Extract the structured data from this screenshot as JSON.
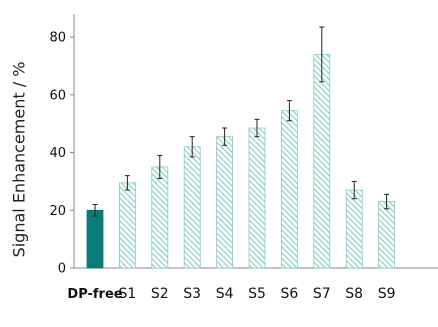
{
  "chart_data": {
    "type": "bar",
    "ylabel": "Signal Enhancement / %",
    "ylim": [
      0,
      88
    ],
    "yticks": [
      "0",
      "20",
      "40",
      "60",
      "80"
    ],
    "categories": [
      "DP-free",
      "S1",
      "S2",
      "S3",
      "S4",
      "S5",
      "S6",
      "S7",
      "S8",
      "S9"
    ],
    "values": [
      20,
      29.5,
      35,
      42,
      45.5,
      48.5,
      54.5,
      74,
      27,
      23
    ],
    "errors": [
      2,
      2.5,
      4,
      3.5,
      3,
      3,
      3.5,
      9.5,
      3,
      2.5
    ],
    "colors": {
      "reference_fill": "#0b7b77",
      "hatch_fill": "#7fcdc6",
      "hatch_background": "#ffffff",
      "axis": "#888888",
      "error_bar": "#222222"
    },
    "grid": false
  }
}
